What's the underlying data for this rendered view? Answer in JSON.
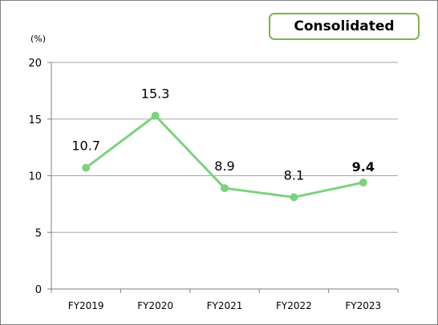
{
  "badge": {
    "label": "Consolidated"
  },
  "chart_data": {
    "type": "line",
    "title": "",
    "unit_label": "(%)",
    "categories": [
      "FY2019",
      "FY2020",
      "FY2021",
      "FY2022",
      "FY2023"
    ],
    "series": [
      {
        "values": [
          10.7,
          15.3,
          8.9,
          8.1,
          9.4
        ],
        "color": "#7ed17e"
      }
    ],
    "data_labels": [
      "10.7",
      "15.3",
      "8.9",
      "8.1",
      "9.4"
    ],
    "highlight": {
      "index": 4,
      "color": "#ff0000",
      "bold": true
    },
    "ylim": [
      0,
      20
    ],
    "yticks": [
      0,
      5,
      10,
      15,
      20
    ],
    "grid": true,
    "gridline_color": "#a6a6a6"
  }
}
